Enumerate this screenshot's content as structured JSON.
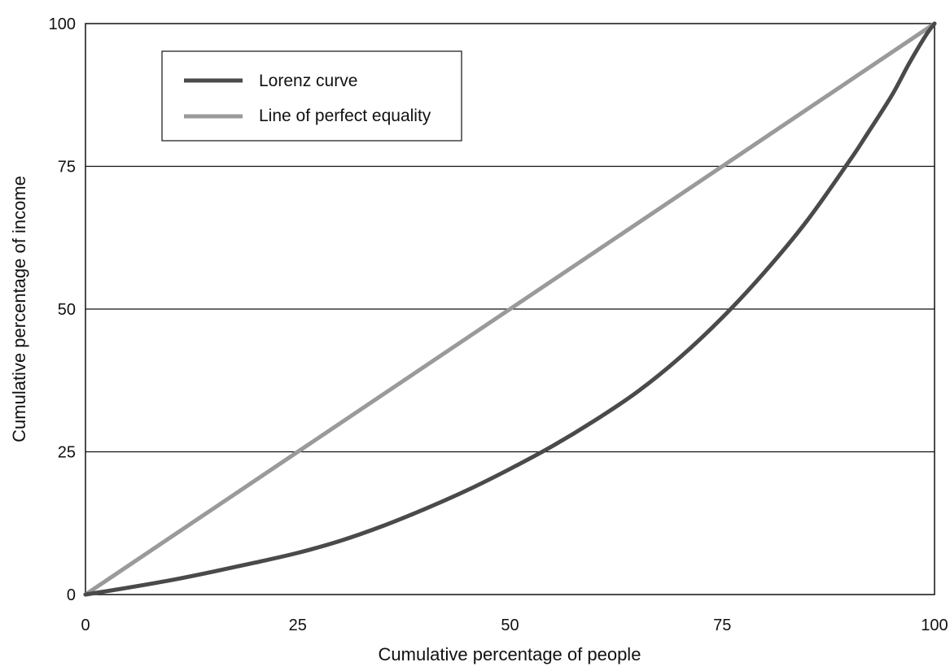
{
  "chart_data": {
    "type": "line",
    "title": "",
    "xlabel": "Cumulative percentage of people",
    "ylabel": "Cumulative percentage of income",
    "xlim": [
      0,
      100
    ],
    "ylim": [
      0,
      100
    ],
    "xticks": [
      "0",
      "25",
      "50",
      "75",
      "100"
    ],
    "yticks": [
      "0",
      "25",
      "50",
      "75",
      "100"
    ],
    "grid": "horizontal",
    "legend": {
      "placement": "top-left",
      "boxed": true
    },
    "series": [
      {
        "name": "Lorenz curve",
        "color": "#4a4a4a",
        "x": [
          0,
          5,
          10,
          15,
          20,
          25,
          30,
          35,
          40,
          45,
          50,
          55,
          60,
          65,
          70,
          75,
          80,
          85,
          90,
          92,
          95,
          97,
          99,
          100
        ],
        "y": [
          0,
          1.2,
          2.5,
          4,
          5.6,
          7.3,
          9.4,
          12,
          15,
          18.3,
          22,
          26,
          30.5,
          35.5,
          41.5,
          48.5,
          56.5,
          65.5,
          76,
          80.5,
          87.5,
          93,
          98,
          100
        ]
      },
      {
        "name": "Line of perfect equality",
        "color": "#9a9a9a",
        "x": [
          0,
          100
        ],
        "y": [
          0,
          100
        ]
      }
    ]
  }
}
